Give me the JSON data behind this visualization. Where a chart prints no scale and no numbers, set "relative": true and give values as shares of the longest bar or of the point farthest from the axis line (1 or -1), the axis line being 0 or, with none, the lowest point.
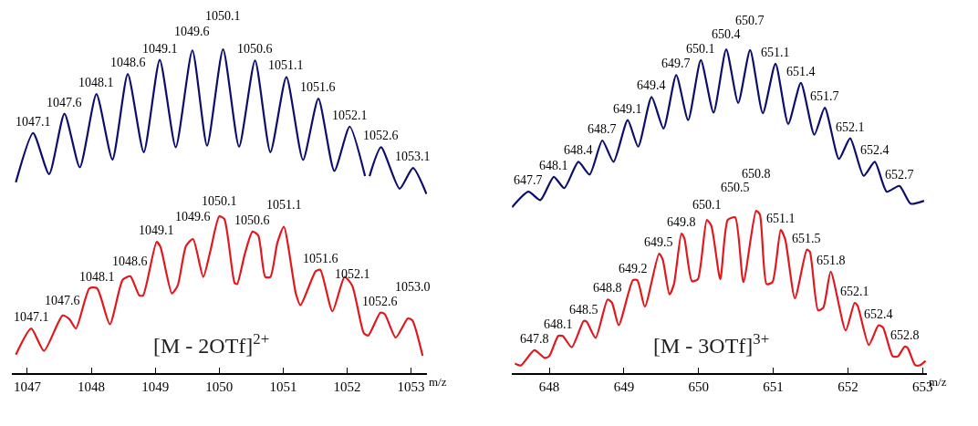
{
  "chart_data": [
    {
      "type": "line",
      "relative": true,
      "xlabel": "m/z",
      "xlim": [
        1046.76,
        1053.25
      ],
      "xticks": [
        1047,
        1048,
        1049,
        1050,
        1051,
        1052,
        1053
      ],
      "series": [
        {
          "color": "#0d0d6b",
          "x": [
            1046.82,
            1047.09,
            1047.34,
            1047.58,
            1047.82,
            1048.08,
            1048.33,
            1048.57,
            1048.82,
            1049.07,
            1049.32,
            1049.58,
            1049.81,
            1050.06,
            1050.31,
            1050.56,
            1050.8,
            1051.05,
            1051.31,
            1051.55,
            1051.8,
            1052.04,
            1052.28,
            1052.31,
            1052.35,
            1052.53,
            1052.82,
            1053.03,
            1053.24
          ],
          "values": [
            0.59,
            0.742,
            0.615,
            0.802,
            0.636,
            0.862,
            0.66,
            0.924,
            0.683,
            0.968,
            0.698,
            0.997,
            0.703,
            1.0,
            0.7,
            0.966,
            0.683,
            0.915,
            0.659,
            0.848,
            0.625,
            0.762,
            0.609,
            null,
            0.609,
            0.698,
            0.57,
            0.634,
            0.554
          ]
        },
        {
          "color": "#e0191e",
          "x": [
            1046.82,
            1047.06,
            1047.26,
            1047.55,
            1047.66,
            1047.76,
            1047.97,
            1048.09,
            1048.29,
            1048.49,
            1048.61,
            1048.75,
            1048.81,
            1049.02,
            1049.08,
            1049.26,
            1049.35,
            1049.48,
            1049.59,
            1049.75,
            1049.86,
            1050.0,
            1050.08,
            1050.24,
            1050.28,
            1050.4,
            1050.52,
            1050.61,
            1050.72,
            1050.8,
            1050.91,
            1051.01,
            1051.2,
            1051.27,
            1051.51,
            1051.58,
            1051.77,
            1051.96,
            1052.08,
            1052.26,
            1052.33,
            1052.52,
            1052.59,
            1052.76,
            1052.95,
            1053.02,
            1053.18
          ],
          "values": [
            0.058,
            0.139,
            0.07,
            0.179,
            0.167,
            0.139,
            0.263,
            0.263,
            0.152,
            0.289,
            0.3,
            0.241,
            0.241,
            0.406,
            0.391,
            0.247,
            0.271,
            0.393,
            0.415,
            0.298,
            0.377,
            0.485,
            0.477,
            0.28,
            0.276,
            0.369,
            0.438,
            0.426,
            0.298,
            0.298,
            0.404,
            0.453,
            0.245,
            0.211,
            0.316,
            0.32,
            0.192,
            0.298,
            0.271,
            0.125,
            0.117,
            0.188,
            0.183,
            0.111,
            0.17,
            0.164,
            0.055
          ]
        }
      ],
      "annotations": [
        {
          "text": "1047.1",
          "x": 1047.09,
          "y": 0.742
        },
        {
          "text": "1047.6",
          "x": 1047.58,
          "y": 0.802
        },
        {
          "text": "1048.1",
          "x": 1048.08,
          "y": 0.862
        },
        {
          "text": "1048.6",
          "x": 1048.57,
          "y": 0.924
        },
        {
          "text": "1049.1",
          "x": 1049.07,
          "y": 0.968
        },
        {
          "text": "1049.6",
          "x": 1049.58,
          "y": 0.997
        },
        {
          "text": "1050.1",
          "x": 1050.06,
          "y": 1.0
        },
        {
          "text": "1050.6",
          "x": 1050.56,
          "y": 0.966
        },
        {
          "text": "1051.1",
          "x": 1051.05,
          "y": 0.915
        },
        {
          "text": "1051.6",
          "x": 1051.55,
          "y": 0.848
        },
        {
          "text": "1052.1",
          "x": 1052.04,
          "y": 0.762
        },
        {
          "text": "1052.6",
          "x": 1052.53,
          "y": 0.698
        },
        {
          "text": "1053.1",
          "x": 1053.03,
          "y": 0.634
        },
        {
          "text": "1047.1",
          "x": 1047.06,
          "y": 0.139
        },
        {
          "text": "1047.6",
          "x": 1047.55,
          "y": 0.179
        },
        {
          "text": "1048.1",
          "x": 1048.09,
          "y": 0.263
        },
        {
          "text": "1048.6",
          "x": 1048.61,
          "y": 0.3
        },
        {
          "text": "1049.1",
          "x": 1049.02,
          "y": 0.406
        },
        {
          "text": "1049.6",
          "x": 1049.59,
          "y": 0.415
        },
        {
          "text": "1050.1",
          "x": 1050.0,
          "y": 0.485
        },
        {
          "text": "1050.6",
          "x": 1050.52,
          "y": 0.438
        },
        {
          "text": "1051.1",
          "x": 1051.01,
          "y": 0.453
        },
        {
          "text": "1051.6",
          "x": 1051.58,
          "y": 0.32
        },
        {
          "text": "1052.1",
          "x": 1052.08,
          "y": 0.271
        },
        {
          "text": "1052.6",
          "x": 1052.52,
          "y": 0.188
        },
        {
          "text": "1053.0",
          "x": 1053.02,
          "y": 0.164
        },
        "[M - 2OTf]$^{2+}$"
      ]
    },
    {
      "type": "line",
      "relative": true,
      "xlabel": "m/z",
      "xlim": [
        647.5,
        653.06
      ],
      "xticks": [
        648,
        649,
        650,
        651,
        652,
        653
      ],
      "series": [
        {
          "color": "#0d0d6b",
          "x": [
            647.5,
            647.72,
            647.88,
            648.06,
            648.2,
            648.39,
            648.54,
            648.71,
            648.86,
            649.05,
            649.19,
            649.37,
            649.53,
            649.7,
            649.86,
            650.03,
            650.2,
            650.37,
            650.53,
            650.69,
            650.86,
            651.03,
            651.2,
            651.37,
            651.55,
            651.69,
            651.88,
            652.03,
            652.21,
            652.36,
            652.52,
            652.69,
            652.84,
            653.02
          ],
          "values": [
            0.513,
            0.561,
            0.535,
            0.607,
            0.572,
            0.653,
            0.614,
            0.719,
            0.653,
            0.782,
            0.7,
            0.853,
            0.756,
            0.921,
            0.782,
            0.967,
            0.805,
            1.0,
            0.835,
            0.998,
            0.803,
            0.956,
            0.77,
            0.897,
            0.737,
            0.82,
            0.662,
            0.726,
            0.61,
            0.653,
            0.561,
            0.579,
            0.524,
            0.533
          ]
        },
        {
          "color": "#e0191e",
          "x": [
            647.54,
            647.62,
            647.8,
            647.94,
            648.0,
            648.12,
            648.18,
            648.3,
            648.46,
            648.5,
            648.62,
            648.78,
            648.84,
            648.93,
            649.12,
            649.18,
            649.28,
            649.47,
            649.52,
            649.61,
            649.67,
            649.77,
            649.81,
            649.91,
            649.99,
            650.11,
            650.17,
            650.29,
            650.39,
            650.49,
            650.6,
            650.77,
            650.82,
            650.91,
            650.99,
            651.1,
            651.16,
            651.29,
            651.45,
            651.49,
            651.6,
            651.67,
            651.77,
            651.97,
            652.09,
            652.13,
            652.28,
            652.41,
            652.47,
            652.6,
            652.67,
            652.76,
            652.8,
            652.9,
            652.96,
            653.04
          ],
          "values": [
            0.031,
            0.025,
            0.072,
            0.048,
            0.054,
            0.116,
            0.116,
            0.081,
            0.162,
            0.16,
            0.11,
            0.228,
            0.218,
            0.149,
            0.288,
            0.288,
            0.206,
            0.37,
            0.351,
            0.244,
            0.276,
            0.432,
            0.417,
            0.285,
            0.291,
            0.474,
            0.456,
            0.291,
            0.474,
            0.482,
            0.282,
            0.502,
            0.491,
            0.276,
            0.282,
            0.443,
            0.414,
            0.232,
            0.382,
            0.376,
            0.195,
            0.203,
            0.314,
            0.133,
            0.218,
            0.209,
            0.088,
            0.149,
            0.142,
            0.053,
            0.053,
            0.083,
            0.079,
            0.026,
            0.025,
            0.039
          ]
        }
      ],
      "annotations": [
        {
          "text": "647.7",
          "x": 647.72,
          "y": 0.561
        },
        {
          "text": "648.1",
          "x": 648.06,
          "y": 0.607
        },
        {
          "text": "648.4",
          "x": 648.39,
          "y": 0.653
        },
        {
          "text": "648.7",
          "x": 648.71,
          "y": 0.719
        },
        {
          "text": "649.1",
          "x": 649.05,
          "y": 0.782
        },
        {
          "text": "649.4",
          "x": 649.37,
          "y": 0.853
        },
        {
          "text": "649.7",
          "x": 649.7,
          "y": 0.921
        },
        {
          "text": "650.1",
          "x": 650.03,
          "y": 0.967
        },
        {
          "text": "650.4",
          "x": 650.37,
          "y": 1.0
        },
        {
          "text": "650.7",
          "x": 650.69,
          "y": 0.998
        },
        {
          "text": "651.1",
          "x": 651.03,
          "y": 0.956
        },
        {
          "text": "651.4",
          "x": 651.37,
          "y": 0.897
        },
        {
          "text": "651.7",
          "x": 651.69,
          "y": 0.82
        },
        {
          "text": "652.1",
          "x": 652.03,
          "y": 0.726
        },
        {
          "text": "652.4",
          "x": 652.36,
          "y": 0.653
        },
        {
          "text": "652.7",
          "x": 652.69,
          "y": 0.579
        },
        {
          "text": "647.8",
          "x": 647.8,
          "y": 0.072
        },
        {
          "text": "648.1",
          "x": 648.12,
          "y": 0.116
        },
        {
          "text": "648.5",
          "x": 648.46,
          "y": 0.162
        },
        {
          "text": "648.8",
          "x": 648.78,
          "y": 0.228
        },
        {
          "text": "649.2",
          "x": 649.12,
          "y": 0.288
        },
        {
          "text": "649.5",
          "x": 649.47,
          "y": 0.37
        },
        {
          "text": "649.8",
          "x": 649.77,
          "y": 0.432
        },
        {
          "text": "650.1",
          "x": 650.11,
          "y": 0.474
        },
        {
          "text": "650.5",
          "x": 650.49,
          "y": 0.482
        },
        {
          "text": "650.8",
          "x": 650.77,
          "y": 0.502
        },
        {
          "text": "651.1",
          "x": 651.1,
          "y": 0.443
        },
        {
          "text": "651.5",
          "x": 651.45,
          "y": 0.382
        },
        {
          "text": "651.8",
          "x": 651.77,
          "y": 0.314
        },
        {
          "text": "652.1",
          "x": 652.09,
          "y": 0.218
        },
        {
          "text": "652.4",
          "x": 652.41,
          "y": 0.149
        },
        {
          "text": "652.8",
          "x": 652.76,
          "y": 0.083
        },
        "[M - 3OTf]$^{3+}$"
      ]
    }
  ]
}
